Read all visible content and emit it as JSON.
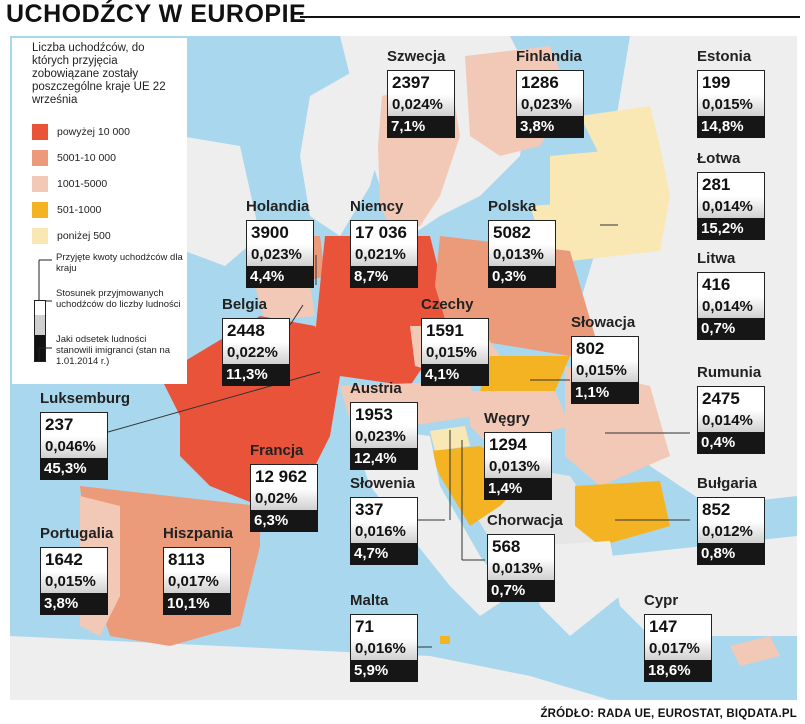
{
  "header": {
    "title": "UCHODŹCY W EUROPIE"
  },
  "legend": {
    "title": "Liczba uchodźców, do których przyjęcia zobowiązane zostały poszczególne kraje UE 22 września",
    "items": [
      {
        "label": "powyżej 10 000",
        "color": "#e8533a"
      },
      {
        "label": "5001-10 000",
        "color": "#eb9a7a"
      },
      {
        "label": "1001-5000",
        "color": "#f2c8b6"
      },
      {
        "label": "501-1000",
        "color": "#f4b323"
      },
      {
        "label": "poniżej 500",
        "color": "#fae8b4"
      }
    ],
    "key_quota": "Przyjęte kwoty uchodźców dla kraju",
    "key_ratio": "Stosunek przyjmowanych uchodźców do liczby ludności",
    "key_immigrants": "Jaki odsetek ludności stanowili imigranci (stan na 1.01.2014 r.)"
  },
  "countries": [
    {
      "id": "szwecja",
      "name": "Szwecja",
      "quota": "2397",
      "ratio": "0,024%",
      "immigrants": "7,1%"
    },
    {
      "id": "finlandia",
      "name": "Finlandia",
      "quota": "1286",
      "ratio": "0,023%",
      "immigrants": "3,8%"
    },
    {
      "id": "estonia",
      "name": "Estonia",
      "quota": "199",
      "ratio": "0,015%",
      "immigrants": "14,8%"
    },
    {
      "id": "lotwa",
      "name": "Łotwa",
      "quota": "281",
      "ratio": "0,014%",
      "immigrants": "15,2%"
    },
    {
      "id": "litwa",
      "name": "Litwa",
      "quota": "416",
      "ratio": "0,014%",
      "immigrants": "0,7%"
    },
    {
      "id": "holandia",
      "name": "Holandia",
      "quota": "3900",
      "ratio": "0,023%",
      "immigrants": "4,4%"
    },
    {
      "id": "niemcy",
      "name": "Niemcy",
      "quota": "17 036",
      "ratio": "0,021%",
      "immigrants": "8,7%"
    },
    {
      "id": "polska",
      "name": "Polska",
      "quota": "5082",
      "ratio": "0,013%",
      "immigrants": "0,3%"
    },
    {
      "id": "belgia",
      "name": "Belgia",
      "quota": "2448",
      "ratio": "0,022%",
      "immigrants": "11,3%"
    },
    {
      "id": "czechy",
      "name": "Czechy",
      "quota": "1591",
      "ratio": "0,015%",
      "immigrants": "4,1%"
    },
    {
      "id": "slowacja",
      "name": "Słowacja",
      "quota": "802",
      "ratio": "0,015%",
      "immigrants": "1,1%"
    },
    {
      "id": "luksemburg",
      "name": "Luksemburg",
      "quota": "237",
      "ratio": "0,046%",
      "immigrants": "45,3%"
    },
    {
      "id": "austria",
      "name": "Austria",
      "quota": "1953",
      "ratio": "0,023%",
      "immigrants": "12,4%"
    },
    {
      "id": "wegry",
      "name": "Węgry",
      "quota": "1294",
      "ratio": "0,013%",
      "immigrants": "1,4%"
    },
    {
      "id": "rumunia",
      "name": "Rumunia",
      "quota": "2475",
      "ratio": "0,014%",
      "immigrants": "0,4%"
    },
    {
      "id": "francja",
      "name": "Francja",
      "quota": "12 962",
      "ratio": "0,02%",
      "immigrants": "6,3%"
    },
    {
      "id": "slowenia",
      "name": "Słowenia",
      "quota": "337",
      "ratio": "0,016%",
      "immigrants": "4,7%"
    },
    {
      "id": "bulgaria",
      "name": "Bułgaria",
      "quota": "852",
      "ratio": "0,012%",
      "immigrants": "0,8%"
    },
    {
      "id": "chorwacja",
      "name": "Chorwacja",
      "quota": "568",
      "ratio": "0,013%",
      "immigrants": "0,7%"
    },
    {
      "id": "portugalia",
      "name": "Portugalia",
      "quota": "1642",
      "ratio": "0,015%",
      "immigrants": "3,8%"
    },
    {
      "id": "hiszpania",
      "name": "Hiszpania",
      "quota": "8113",
      "ratio": "0,017%",
      "immigrants": "10,1%"
    },
    {
      "id": "malta",
      "name": "Malta",
      "quota": "71",
      "ratio": "0,016%",
      "immigrants": "5,9%"
    },
    {
      "id": "cypr",
      "name": "Cypr",
      "quota": "147",
      "ratio": "0,017%",
      "immigrants": "18,6%"
    }
  ],
  "footer": {
    "source": "ŹRÓDŁO: RADA UE, EUROSTAT, BIQDATA.PL"
  }
}
